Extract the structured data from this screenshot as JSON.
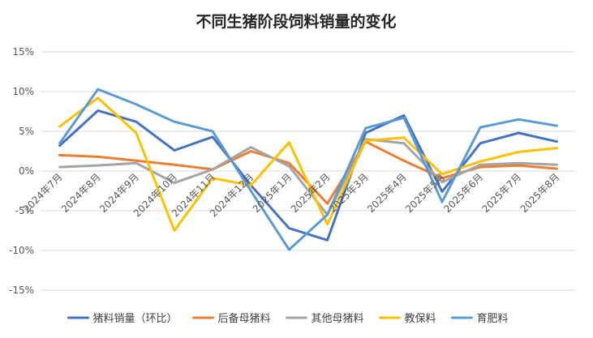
{
  "chart_data": {
    "type": "line",
    "title": "不同生猪阶段饲料销量的变化",
    "categories": [
      "2024年7月",
      "2024年8月",
      "2024年9月",
      "2024年10月",
      "2024年11月",
      "2024年12月",
      "2025年1月",
      "2025年2月",
      "2025年3月",
      "2025年4月",
      "2025年5月",
      "2025年6月",
      "2025年7月",
      "2025年8月"
    ],
    "y_ticks": [
      "15%",
      "10%",
      "5%",
      "0%",
      "-5%",
      "-10%",
      "-15%"
    ],
    "y_tick_values": [
      15,
      10,
      5,
      0,
      -5,
      -10,
      -15
    ],
    "ylim": [
      -15,
      15
    ],
    "unit": "%",
    "grid": true,
    "legend_position": "bottom",
    "series": [
      {
        "name": "猪料销量（环比）",
        "color": "#4472c4",
        "values": [
          3.2,
          7.6,
          6.2,
          2.6,
          4.3,
          -1.8,
          -7.2,
          -8.7,
          4.8,
          7.0,
          -2.6,
          3.5,
          4.8,
          3.7
        ]
      },
      {
        "name": "后备母猪料",
        "color": "#ed7d31",
        "values": [
          2.0,
          1.8,
          1.3,
          0.8,
          0.2,
          2.5,
          1.0,
          -4.1,
          3.7,
          1.3,
          -0.9,
          0.5,
          0.7,
          0.3
        ]
      },
      {
        "name": "其他母猪料",
        "color": "#a5a5a5",
        "values": [
          0.5,
          0.7,
          1.0,
          -1.5,
          0.2,
          3.0,
          0.6,
          -5.5,
          4.0,
          3.5,
          -1.4,
          0.8,
          1.0,
          0.8
        ]
      },
      {
        "name": "教保料",
        "color": "#ffc000",
        "values": [
          5.6,
          9.2,
          4.8,
          -7.5,
          -0.9,
          -1.8,
          3.6,
          -6.7,
          3.8,
          4.2,
          -0.4,
          1.2,
          2.4,
          2.9
        ]
      },
      {
        "name": "育肥料",
        "color": "#5b9bd5",
        "values": [
          3.5,
          10.3,
          8.4,
          6.2,
          5.0,
          -2.5,
          -9.9,
          -5.5,
          5.4,
          6.7,
          -3.9,
          5.5,
          6.5,
          5.7
        ]
      }
    ]
  }
}
